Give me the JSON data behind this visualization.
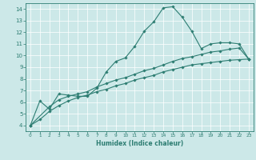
{
  "xlabel": "Humidex (Indice chaleur)",
  "xlim": [
    -0.5,
    23.5
  ],
  "ylim": [
    3.5,
    14.5
  ],
  "xticks": [
    0,
    1,
    2,
    3,
    4,
    5,
    6,
    7,
    8,
    9,
    10,
    11,
    12,
    13,
    14,
    15,
    16,
    17,
    18,
    19,
    20,
    21,
    22,
    23
  ],
  "yticks": [
    4,
    5,
    6,
    7,
    8,
    9,
    10,
    11,
    12,
    13,
    14
  ],
  "bg_color": "#cce8e8",
  "grid_color": "#b0d8d8",
  "line_color": "#2d7d72",
  "line1_x": [
    0,
    1,
    2,
    3,
    4,
    5,
    6,
    7,
    8,
    9,
    10,
    11,
    12,
    13,
    14,
    15,
    16,
    17,
    18,
    19,
    20,
    21,
    22,
    23
  ],
  "line1_y": [
    4.0,
    6.1,
    5.4,
    6.7,
    6.6,
    6.5,
    6.5,
    7.2,
    8.6,
    9.5,
    9.8,
    10.8,
    12.1,
    12.9,
    14.1,
    14.2,
    13.3,
    12.1,
    10.6,
    11.0,
    11.1,
    11.1,
    11.0,
    9.7
  ],
  "line2_x": [
    0,
    1,
    2,
    3,
    4,
    5,
    6,
    7,
    8,
    9,
    10,
    11,
    12,
    13,
    14,
    15,
    16,
    17,
    18,
    19,
    20,
    21,
    22,
    23
  ],
  "line2_y": [
    4.0,
    4.5,
    5.2,
    5.7,
    6.1,
    6.4,
    6.6,
    6.9,
    7.1,
    7.4,
    7.6,
    7.9,
    8.1,
    8.3,
    8.6,
    8.8,
    9.0,
    9.2,
    9.3,
    9.4,
    9.5,
    9.6,
    9.65,
    9.7
  ],
  "line3_x": [
    0,
    2,
    3,
    4,
    5,
    6,
    7,
    8,
    9,
    10,
    11,
    12,
    13,
    14,
    15,
    16,
    17,
    18,
    19,
    20,
    21,
    22,
    23
  ],
  "line3_y": [
    4.0,
    5.6,
    6.2,
    6.5,
    6.7,
    6.9,
    7.3,
    7.6,
    7.9,
    8.1,
    8.4,
    8.7,
    8.9,
    9.2,
    9.5,
    9.75,
    9.9,
    10.1,
    10.3,
    10.4,
    10.55,
    10.65,
    9.7
  ]
}
